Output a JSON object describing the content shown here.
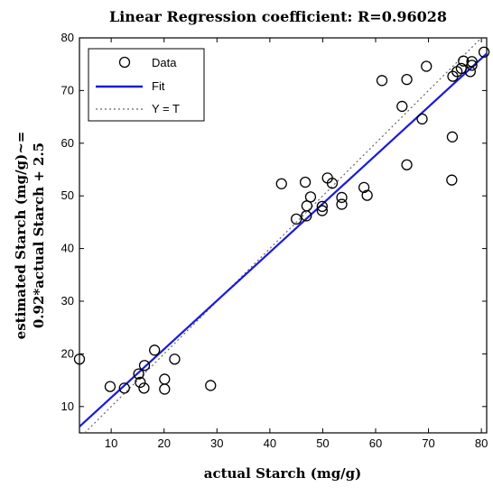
{
  "chart_data": {
    "type": "scatter",
    "title": "Linear Regression coefficient: R=0.96028",
    "xlabel": "actual Starch (mg/g)",
    "ylabel_line1": "estimated Starch (mg/g)~=",
    "ylabel_line2": "0.92*actual Starch + 2.5",
    "xlim": [
      4,
      81
    ],
    "ylim": [
      5,
      80
    ],
    "xticks": [
      10,
      20,
      30,
      40,
      50,
      60,
      70,
      80
    ],
    "yticks": [
      10,
      20,
      30,
      40,
      50,
      60,
      70,
      80
    ],
    "grid": false,
    "legend_placement": "top-left",
    "legend": [
      "Data",
      "Fit",
      "Y = T"
    ],
    "colors": {
      "data": "#000000",
      "fit": "#1a1adc",
      "identity": "#666666"
    },
    "fit": {
      "slope": 0.92,
      "intercept": 2.5
    },
    "points": [
      [
        4,
        19
      ],
      [
        9.8,
        13.8
      ],
      [
        12.5,
        13.5
      ],
      [
        15.2,
        16.2
      ],
      [
        15.5,
        14.6
      ],
      [
        16.2,
        13.5
      ],
      [
        16.3,
        17.8
      ],
      [
        18.2,
        20.7
      ],
      [
        20.1,
        15.2
      ],
      [
        20.1,
        13.3
      ],
      [
        22,
        19
      ],
      [
        28.8,
        14
      ],
      [
        42.2,
        52.3
      ],
      [
        45,
        45.6
      ],
      [
        46.7,
        52.6
      ],
      [
        46.9,
        46.2
      ],
      [
        47,
        48.1
      ],
      [
        47.7,
        49.8
      ],
      [
        49.9,
        48
      ],
      [
        49.9,
        47.2
      ],
      [
        50.9,
        53.4
      ],
      [
        51.8,
        52.4
      ],
      [
        53.6,
        48.4
      ],
      [
        53.6,
        49.7
      ],
      [
        57.8,
        51.6
      ],
      [
        58.4,
        50.1
      ],
      [
        61.2,
        71.9
      ],
      [
        65,
        67
      ],
      [
        65.9,
        55.9
      ],
      [
        65.9,
        72.1
      ],
      [
        68.8,
        64.6
      ],
      [
        69.6,
        74.6
      ],
      [
        74.4,
        53
      ],
      [
        74.5,
        61.2
      ],
      [
        74.6,
        72.7
      ],
      [
        75.4,
        73.6
      ],
      [
        76.2,
        74.2
      ],
      [
        76.6,
        75.6
      ],
      [
        77.9,
        73.6
      ],
      [
        78.2,
        75.5
      ],
      [
        78.2,
        74.8
      ],
      [
        80.5,
        77.3
      ]
    ]
  }
}
